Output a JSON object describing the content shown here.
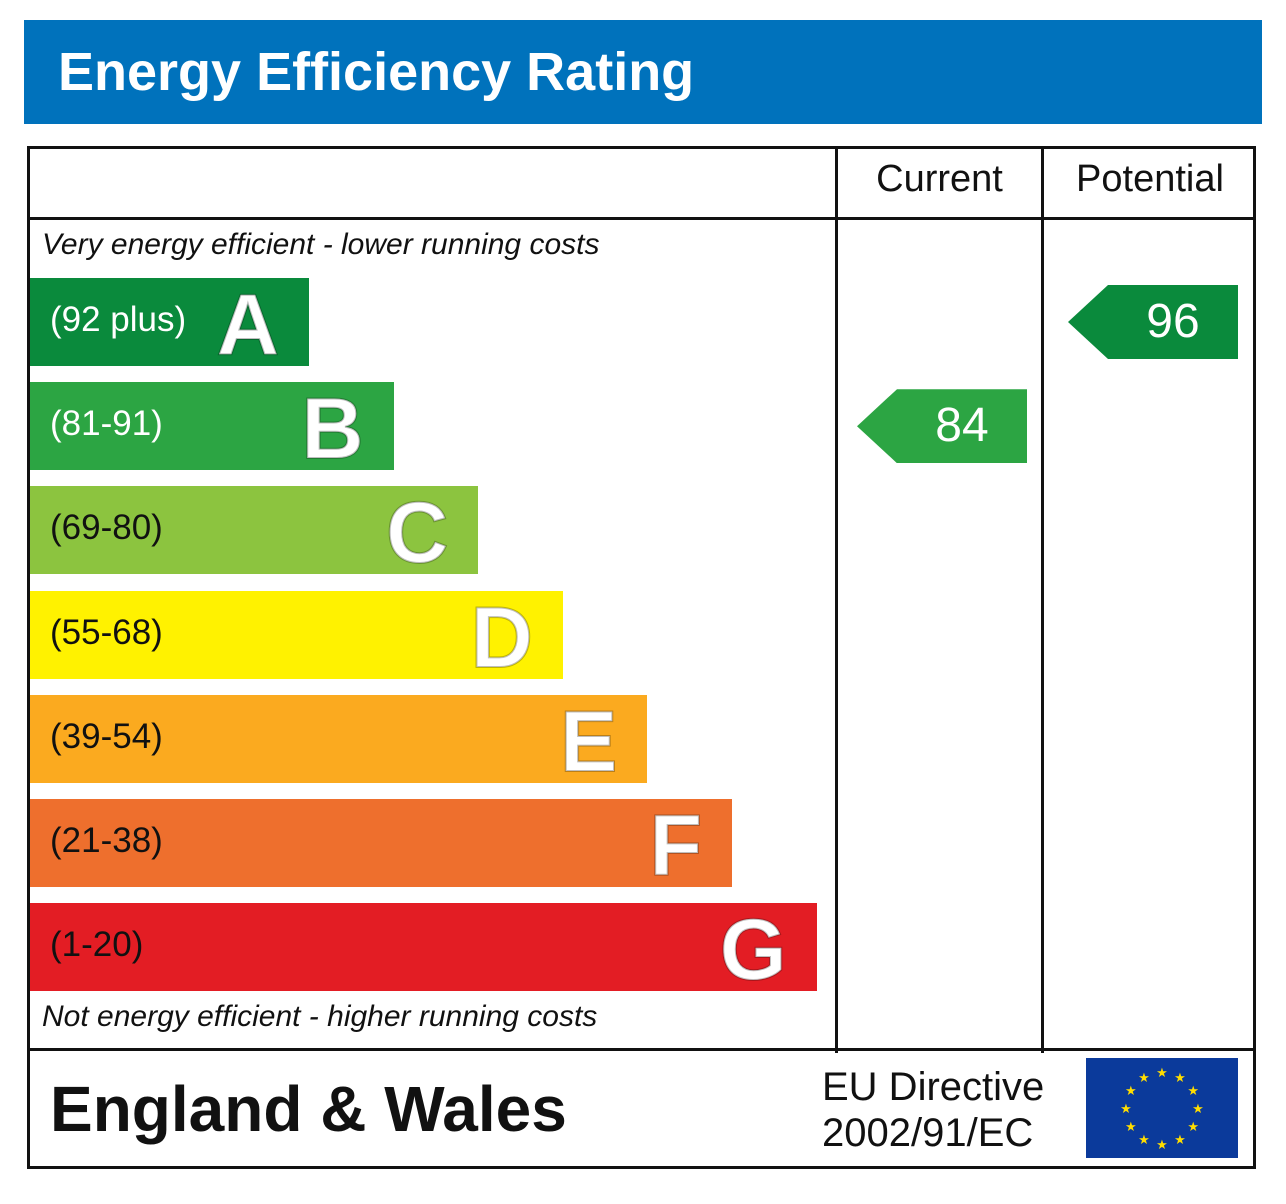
{
  "title": "Energy Efficiency Rating",
  "header": {
    "current": "Current",
    "potential": "Potential"
  },
  "top_note": "Very energy efficient - lower running costs",
  "bottom_note": "Not energy efficient - higher running costs",
  "footer": {
    "region": "England & Wales",
    "directive_line1": "EU Directive",
    "directive_line2": "2002/91/EC",
    "flag_icon": "eu-flag-icon"
  },
  "chart_data": {
    "type": "bar",
    "bands": [
      {
        "letter": "A",
        "range": "(92 plus)",
        "color": "#0a8a3c",
        "text_color": "#ffffff"
      },
      {
        "letter": "B",
        "range": "(81-91)",
        "color": "#2ca543",
        "text_color": "#ffffff"
      },
      {
        "letter": "C",
        "range": "(69-80)",
        "color": "#8cc43f",
        "text_color": "#111111"
      },
      {
        "letter": "D",
        "range": "(55-68)",
        "color": "#fff200",
        "text_color": "#111111"
      },
      {
        "letter": "E",
        "range": "(39-54)",
        "color": "#fbaa1f",
        "text_color": "#111111"
      },
      {
        "letter": "F",
        "range": "(21-38)",
        "color": "#ee6f2d",
        "text_color": "#111111"
      },
      {
        "letter": "G",
        "range": "(1-20)",
        "color": "#e31d24",
        "text_color": "#111111"
      }
    ],
    "current": {
      "value": 84,
      "band": "B",
      "color": "#2ca543"
    },
    "potential": {
      "value": 96,
      "band": "A",
      "color": "#0a8a3c"
    }
  }
}
